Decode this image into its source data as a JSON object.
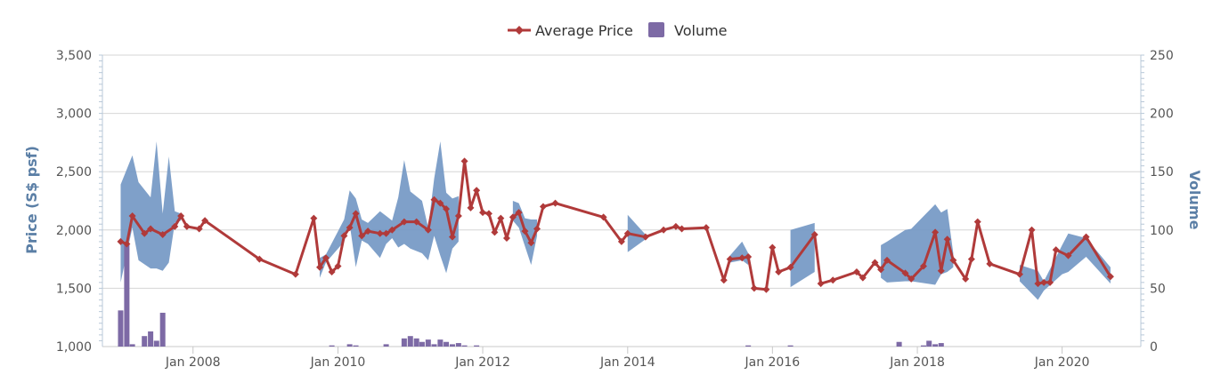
{
  "chart_data": {
    "type": "line",
    "legend": {
      "placement": "top-center",
      "items": [
        {
          "name": "Average Price",
          "color": "#b03a3a",
          "symbol": "line-diamond"
        },
        {
          "name": "Volume",
          "color": "#7d6aa5",
          "symbol": "square"
        }
      ]
    },
    "y_left": {
      "label": "Price (S$ psf)",
      "min": 1000,
      "max": 3500,
      "ticks": [
        "1,000",
        "1,500",
        "2,000",
        "2,500",
        "3,000",
        "3,500"
      ],
      "tick_values": [
        1000,
        1500,
        2000,
        2500,
        3000,
        3500
      ]
    },
    "y_right": {
      "label": "Volume",
      "min": 0,
      "max": 250,
      "ticks": [
        "0",
        "50",
        "100",
        "150",
        "200",
        "250"
      ],
      "tick_values": [
        0,
        50,
        100,
        150,
        200,
        250
      ]
    },
    "x_axis": {
      "type": "date",
      "min": "2006-10-01",
      "max": "2021-02-01",
      "tick_labels": [
        "Jan 2008",
        "Jan 2010",
        "Jan 2012",
        "Jan 2014",
        "Jan 2016",
        "Jan 2018",
        "Jan 2020"
      ],
      "tick_dates": [
        "2008-01-01",
        "2010-01-01",
        "2012-01-01",
        "2014-01-01",
        "2016-01-01",
        "2018-01-01",
        "2020-01-01"
      ]
    },
    "grid": "horizontal",
    "colors": {
      "price_line": "#b03a3a",
      "range_band": "#7196c3",
      "volume_bars": "#7d6aa5",
      "axis_title": "#5b7fa6"
    },
    "series": [
      {
        "name": "Average Price",
        "axis": "left",
        "points": [
          [
            "2007-01-01",
            1900
          ],
          [
            "2007-02-01",
            1880
          ],
          [
            "2007-03-01",
            2120
          ],
          [
            "2007-05-01",
            1970
          ],
          [
            "2007-06-01",
            2010
          ],
          [
            "2007-08-01",
            1960
          ],
          [
            "2007-10-01",
            2030
          ],
          [
            "2007-11-01",
            2120
          ],
          [
            "2007-12-01",
            2030
          ],
          [
            "2008-02-01",
            2010
          ],
          [
            "2008-03-01",
            2080
          ],
          [
            "2008-12-01",
            1750
          ],
          [
            "2009-06-01",
            1620
          ],
          [
            "2009-09-01",
            2100
          ],
          [
            "2009-10-01",
            1680
          ],
          [
            "2009-11-01",
            1760
          ],
          [
            "2009-12-01",
            1640
          ],
          [
            "2010-01-01",
            1690
          ],
          [
            "2010-02-01",
            1950
          ],
          [
            "2010-03-01",
            2020
          ],
          [
            "2010-04-01",
            2140
          ],
          [
            "2010-05-01",
            1950
          ],
          [
            "2010-06-01",
            1990
          ],
          [
            "2010-08-01",
            1970
          ],
          [
            "2010-09-01",
            1970
          ],
          [
            "2010-10-01",
            2000
          ],
          [
            "2010-12-01",
            2070
          ],
          [
            "2011-02-01",
            2070
          ],
          [
            "2011-04-01",
            2000
          ],
          [
            "2011-05-01",
            2260
          ],
          [
            "2011-06-01",
            2230
          ],
          [
            "2011-07-01",
            2180
          ],
          [
            "2011-08-01",
            1940
          ],
          [
            "2011-09-01",
            2120
          ],
          [
            "2011-10-01",
            2590
          ],
          [
            "2011-11-01",
            2190
          ],
          [
            "2011-12-01",
            2340
          ],
          [
            "2012-01-01",
            2150
          ],
          [
            "2012-02-01",
            2140
          ],
          [
            "2012-03-01",
            1980
          ],
          [
            "2012-04-01",
            2100
          ],
          [
            "2012-05-01",
            1930
          ],
          [
            "2012-06-01",
            2110
          ],
          [
            "2012-07-01",
            2150
          ],
          [
            "2012-08-01",
            1990
          ],
          [
            "2012-09-01",
            1890
          ],
          [
            "2012-10-01",
            2010
          ],
          [
            "2012-11-01",
            2200
          ],
          [
            "2013-01-01",
            2230
          ],
          [
            "2013-09-01",
            2110
          ],
          [
            "2013-12-01",
            1900
          ],
          [
            "2014-01-01",
            1970
          ],
          [
            "2014-04-01",
            1940
          ],
          [
            "2014-07-01",
            2000
          ],
          [
            "2014-09-01",
            2030
          ],
          [
            "2014-10-01",
            2010
          ],
          [
            "2015-02-01",
            2020
          ],
          [
            "2015-05-01",
            1570
          ],
          [
            "2015-06-01",
            1750
          ],
          [
            "2015-08-01",
            1760
          ],
          [
            "2015-09-01",
            1770
          ],
          [
            "2015-10-01",
            1500
          ],
          [
            "2015-12-01",
            1490
          ],
          [
            "2016-01-01",
            1850
          ],
          [
            "2016-02-01",
            1640
          ],
          [
            "2016-04-01",
            1680
          ],
          [
            "2016-08-01",
            1960
          ],
          [
            "2016-09-01",
            1540
          ],
          [
            "2016-11-01",
            1570
          ],
          [
            "2017-03-01",
            1640
          ],
          [
            "2017-04-01",
            1590
          ],
          [
            "2017-06-01",
            1720
          ],
          [
            "2017-07-01",
            1660
          ],
          [
            "2017-08-01",
            1740
          ],
          [
            "2017-11-01",
            1630
          ],
          [
            "2017-12-01",
            1580
          ],
          [
            "2018-02-01",
            1690
          ],
          [
            "2018-04-01",
            1980
          ],
          [
            "2018-05-01",
            1650
          ],
          [
            "2018-06-01",
            1920
          ],
          [
            "2018-07-01",
            1740
          ],
          [
            "2018-09-01",
            1580
          ],
          [
            "2018-10-01",
            1750
          ],
          [
            "2018-11-01",
            2070
          ],
          [
            "2019-01-01",
            1710
          ],
          [
            "2019-06-01",
            1620
          ],
          [
            "2019-08-01",
            2000
          ],
          [
            "2019-09-01",
            1540
          ],
          [
            "2019-10-01",
            1550
          ],
          [
            "2019-11-01",
            1550
          ],
          [
            "2019-12-01",
            1830
          ],
          [
            "2020-02-01",
            1780
          ],
          [
            "2020-05-01",
            1940
          ],
          [
            "2020-09-01",
            1600
          ]
        ]
      },
      {
        "name": "Price range",
        "axis": "left",
        "points": [
          [
            "2007-01-01",
            1550,
            2390
          ],
          [
            "2007-03-01",
            2020,
            2640
          ],
          [
            "2007-04-01",
            1740,
            2410
          ],
          [
            "2007-06-01",
            1670,
            2280
          ],
          [
            "2007-07-01",
            1670,
            2760
          ],
          [
            "2007-08-01",
            1650,
            2140
          ],
          [
            "2007-09-01",
            1720,
            2630
          ],
          [
            "2007-10-01",
            2060,
            2160
          ],
          [
            "2007-11-01",
            2080,
            2140
          ],
          [
            "2009-10-01",
            1590,
            1760
          ],
          [
            "2009-11-01",
            1720,
            1790
          ],
          [
            "2010-02-01",
            1900,
            2090
          ],
          [
            "2010-03-01",
            2050,
            2340
          ],
          [
            "2010-04-01",
            1680,
            2270
          ],
          [
            "2010-05-01",
            1910,
            2090
          ],
          [
            "2010-06-01",
            1880,
            2060
          ],
          [
            "2010-08-01",
            1760,
            2160
          ],
          [
            "2010-09-01",
            1880,
            2120
          ],
          [
            "2010-10-01",
            1930,
            2080
          ],
          [
            "2010-11-01",
            1850,
            2280
          ],
          [
            "2010-12-01",
            1880,
            2600
          ],
          [
            "2011-01-01",
            1840,
            2330
          ],
          [
            "2011-03-01",
            1800,
            2250
          ],
          [
            "2011-04-01",
            1740,
            2020
          ],
          [
            "2011-05-01",
            1950,
            2440
          ],
          [
            "2011-06-01",
            1780,
            2760
          ],
          [
            "2011-07-01",
            1630,
            2320
          ],
          [
            "2011-08-01",
            1840,
            2270
          ],
          [
            "2011-09-01",
            1900,
            2290
          ],
          [
            "2012-06-01",
            2080,
            2250
          ],
          [
            "2012-07-01",
            2020,
            2230
          ],
          [
            "2012-08-01",
            1860,
            2100
          ],
          [
            "2012-09-01",
            1700,
            2090
          ],
          [
            "2012-10-01",
            1950,
            2090
          ],
          [
            "2014-01-01",
            1810,
            2130
          ],
          [
            "2014-04-01",
            1920,
            1960
          ],
          [
            "2015-06-01",
            1720,
            1780
          ],
          [
            "2015-08-01",
            1740,
            1900
          ],
          [
            "2015-09-01",
            1700,
            1800
          ],
          [
            "2016-04-01",
            1510,
            2000
          ],
          [
            "2016-08-01",
            1640,
            2060
          ],
          [
            "2017-07-01",
            1590,
            1870
          ],
          [
            "2017-08-01",
            1550,
            1900
          ],
          [
            "2017-11-01",
            1560,
            2000
          ],
          [
            "2017-12-01",
            1560,
            2010
          ],
          [
            "2018-04-01",
            1530,
            2220
          ],
          [
            "2018-05-01",
            1620,
            2150
          ],
          [
            "2018-06-01",
            1640,
            2180
          ],
          [
            "2018-07-01",
            1680,
            1800
          ],
          [
            "2019-06-01",
            1560,
            1700
          ],
          [
            "2019-09-01",
            1400,
            1650
          ],
          [
            "2019-10-01",
            1480,
            1560
          ],
          [
            "2020-01-01",
            1620,
            1870
          ],
          [
            "2020-02-01",
            1640,
            1970
          ],
          [
            "2020-05-01",
            1770,
            1930
          ],
          [
            "2020-09-01",
            1540,
            1680
          ]
        ]
      },
      {
        "name": "Volume",
        "axis": "right",
        "bars": [
          [
            "2007-01-01",
            31
          ],
          [
            "2007-02-01",
            88
          ],
          [
            "2007-03-01",
            2
          ],
          [
            "2007-05-01",
            9
          ],
          [
            "2007-06-01",
            13
          ],
          [
            "2007-07-01",
            5
          ],
          [
            "2007-08-01",
            29
          ],
          [
            "2009-12-01",
            1
          ],
          [
            "2010-03-01",
            2
          ],
          [
            "2010-04-01",
            1
          ],
          [
            "2010-09-01",
            2
          ],
          [
            "2010-12-01",
            7
          ],
          [
            "2011-01-01",
            9
          ],
          [
            "2011-02-01",
            7
          ],
          [
            "2011-03-01",
            4
          ],
          [
            "2011-04-01",
            6
          ],
          [
            "2011-05-01",
            2
          ],
          [
            "2011-06-01",
            6
          ],
          [
            "2011-07-01",
            4
          ],
          [
            "2011-08-01",
            2
          ],
          [
            "2011-09-01",
            3
          ],
          [
            "2011-10-01",
            1
          ],
          [
            "2011-12-01",
            1
          ],
          [
            "2015-09-01",
            1
          ],
          [
            "2016-04-01",
            1
          ],
          [
            "2017-10-01",
            4
          ],
          [
            "2018-02-01",
            1
          ],
          [
            "2018-03-01",
            5
          ],
          [
            "2018-04-01",
            2
          ],
          [
            "2018-05-01",
            3
          ]
        ]
      }
    ]
  }
}
